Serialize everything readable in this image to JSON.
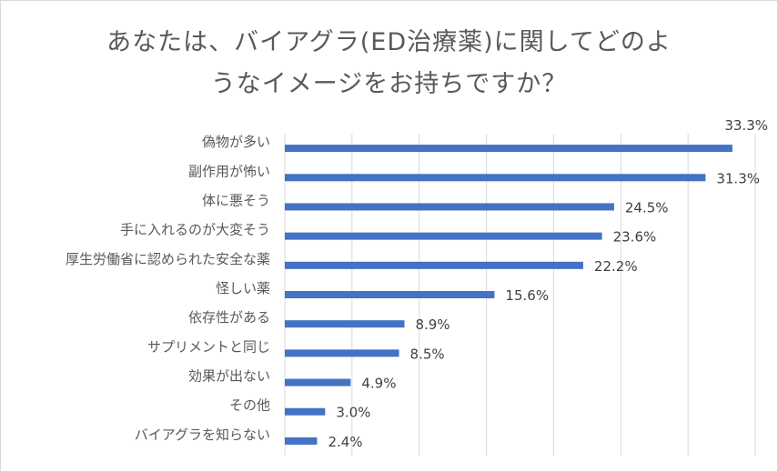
{
  "chart_data": {
    "type": "bar",
    "orientation": "horizontal",
    "title_lines": [
      "あなたは、バイアグラ(ED治療薬)に関してどのよ",
      "うなイメージをお持ちですか？"
    ],
    "categories": [
      "偽物が多い",
      "副作用が怖い",
      "体に悪そう",
      "手に入れるのが大変そう",
      "厚生労働省に認められた安全な薬",
      "怪しい薬",
      "依存性がある",
      "サプリメントと同じ",
      "効果が出ない",
      "その他",
      "バイアグラを知らない"
    ],
    "values": [
      33.3,
      31.3,
      24.5,
      23.6,
      22.2,
      15.6,
      8.9,
      8.5,
      4.9,
      3.0,
      2.4
    ],
    "value_labels": [
      "33.3%",
      "31.3%",
      "24.5%",
      "23.6%",
      "22.2%",
      "15.6%",
      "8.9%",
      "8.5%",
      "4.9%",
      "3.0%",
      "2.4%"
    ],
    "xlim": [
      0,
      35
    ],
    "grid_step": 5,
    "grid": true,
    "legend": "none",
    "bar_color": "#4472c4",
    "gridline_color": "#d9d9d9"
  }
}
